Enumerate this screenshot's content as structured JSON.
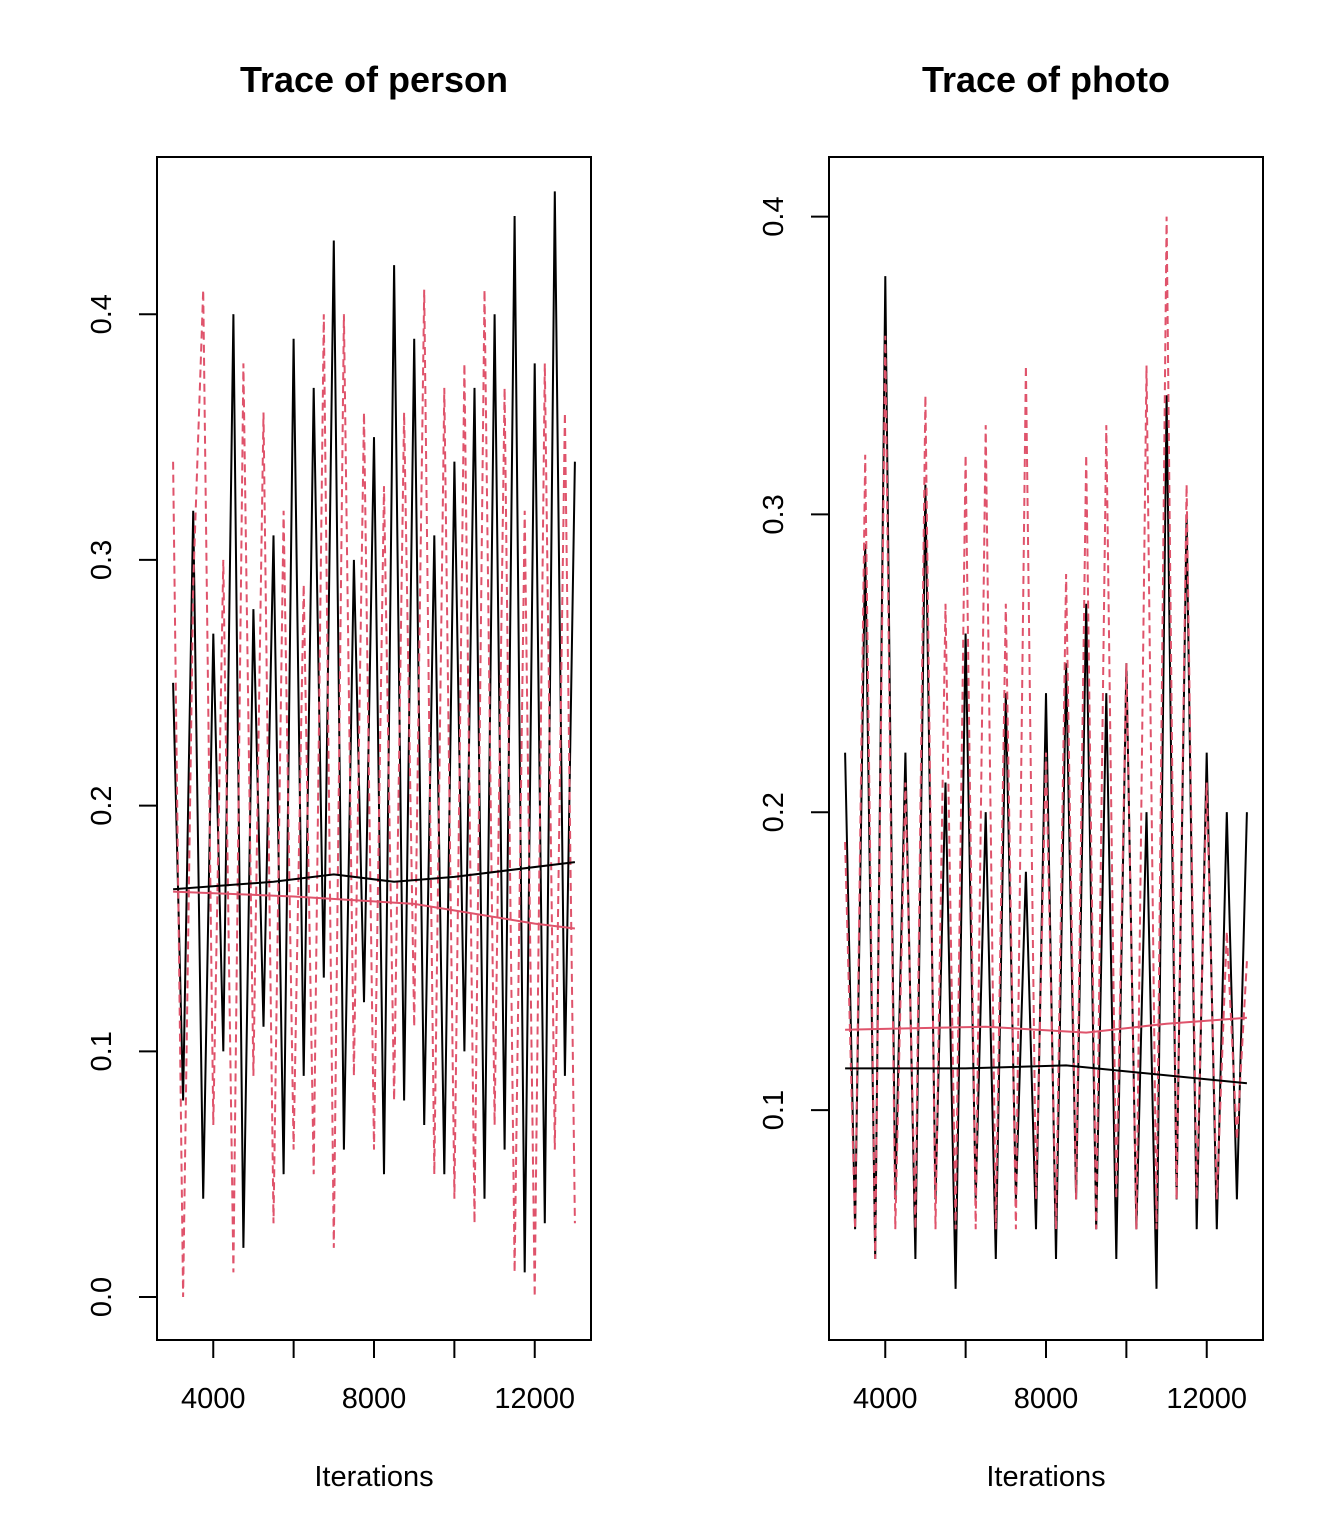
{
  "chart_data": [
    {
      "type": "line",
      "title": "Trace of person",
      "xlabel": "Iterations",
      "ylabel": "",
      "xlim": [
        2600,
        13400
      ],
      "ylim": [
        -0.0175,
        0.464
      ],
      "xticks": [
        4000,
        6000,
        8000,
        10000,
        12000
      ],
      "xtick_labels": [
        "4000",
        "",
        "8000",
        "",
        "12000"
      ],
      "yticks": [
        0.0,
        0.1,
        0.2,
        0.3,
        0.4
      ],
      "ytick_labels": [
        "0.0",
        "0.1",
        "0.2",
        "0.3",
        "0.4"
      ],
      "x": {
        "start": 3000,
        "step": 250,
        "end": 13000
      },
      "series": [
        {
          "color": "#000000",
          "dash": "solid",
          "values": [
            0.25,
            0.08,
            0.32,
            0.04,
            0.27,
            0.1,
            0.4,
            0.02,
            0.28,
            0.11,
            0.31,
            0.05,
            0.39,
            0.09,
            0.37,
            0.13,
            0.43,
            0.06,
            0.3,
            0.12,
            0.35,
            0.05,
            0.42,
            0.08,
            0.39,
            0.07,
            0.31,
            0.05,
            0.34,
            0.1,
            0.37,
            0.04,
            0.4,
            0.06,
            0.44,
            0.01,
            0.38,
            0.03,
            0.45,
            0.09,
            0.34
          ],
          "smooth": [
            [
              3000,
              0.166
            ],
            [
              5500,
              0.169
            ],
            [
              7000,
              0.172
            ],
            [
              8500,
              0.169
            ],
            [
              10000,
              0.171
            ],
            [
              13000,
              0.177
            ]
          ]
        },
        {
          "color": "#DF536B",
          "dash": "dashed",
          "values": [
            0.34,
            0.0,
            0.29,
            0.41,
            0.07,
            0.3,
            0.01,
            0.38,
            0.09,
            0.36,
            0.03,
            0.32,
            0.06,
            0.29,
            0.05,
            0.4,
            0.02,
            0.4,
            0.09,
            0.36,
            0.06,
            0.33,
            0.08,
            0.36,
            0.11,
            0.41,
            0.05,
            0.37,
            0.04,
            0.38,
            0.03,
            0.41,
            0.07,
            0.37,
            0.01,
            0.32,
            0.0,
            0.38,
            0.06,
            0.36,
            0.03
          ],
          "smooth": [
            [
              3000,
              0.165
            ],
            [
              6000,
              0.163
            ],
            [
              9000,
              0.16
            ],
            [
              12000,
              0.152
            ],
            [
              13000,
              0.15
            ]
          ]
        }
      ],
      "grid": false
    },
    {
      "type": "line",
      "title": "Trace of photo",
      "xlabel": "Iterations",
      "ylabel": "",
      "xlim": [
        2600,
        13400
      ],
      "ylim": [
        0.0228,
        0.42
      ],
      "xticks": [
        4000,
        6000,
        8000,
        10000,
        12000
      ],
      "xtick_labels": [
        "4000",
        "",
        "8000",
        "",
        "12000"
      ],
      "yticks": [
        0.1,
        0.2,
        0.3,
        0.4
      ],
      "ytick_labels": [
        "0.1",
        "0.2",
        "0.3",
        "0.4"
      ],
      "x": {
        "start": 3000,
        "step": 250,
        "end": 13000
      },
      "series": [
        {
          "color": "#000000",
          "dash": "solid",
          "values": [
            0.22,
            0.06,
            0.29,
            0.05,
            0.38,
            0.07,
            0.22,
            0.05,
            0.31,
            0.07,
            0.21,
            0.04,
            0.26,
            0.07,
            0.2,
            0.05,
            0.24,
            0.07,
            0.18,
            0.06,
            0.24,
            0.05,
            0.25,
            0.07,
            0.27,
            0.06,
            0.24,
            0.05,
            0.25,
            0.06,
            0.2,
            0.04,
            0.34,
            0.07,
            0.3,
            0.06,
            0.22,
            0.06,
            0.2,
            0.07,
            0.2
          ],
          "smooth": [
            [
              3000,
              0.114
            ],
            [
              6000,
              0.114
            ],
            [
              8500,
              0.115
            ],
            [
              10000,
              0.113
            ],
            [
              13000,
              0.109
            ]
          ]
        },
        {
          "color": "#DF536B",
          "dash": "dashed",
          "values": [
            0.19,
            0.06,
            0.32,
            0.05,
            0.36,
            0.06,
            0.21,
            0.06,
            0.34,
            0.06,
            0.27,
            0.06,
            0.32,
            0.06,
            0.33,
            0.06,
            0.27,
            0.06,
            0.35,
            0.07,
            0.22,
            0.06,
            0.28,
            0.07,
            0.32,
            0.06,
            0.33,
            0.07,
            0.25,
            0.06,
            0.35,
            0.06,
            0.4,
            0.07,
            0.31,
            0.07,
            0.21,
            0.07,
            0.16,
            0.09,
            0.15
          ],
          "smooth": [
            [
              3000,
              0.127
            ],
            [
              6500,
              0.128
            ],
            [
              9000,
              0.126
            ],
            [
              11000,
              0.129
            ],
            [
              13000,
              0.131
            ]
          ]
        }
      ],
      "grid": false
    }
  ]
}
